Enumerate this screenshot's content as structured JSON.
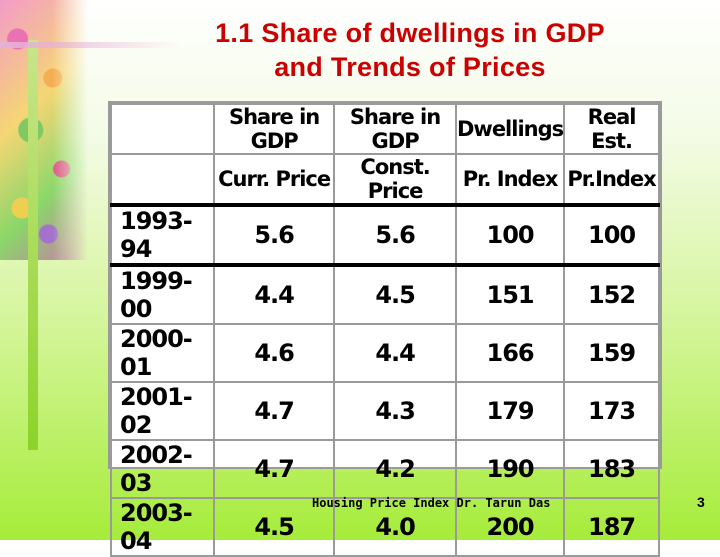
{
  "slide": {
    "title_line1": "1.1 Share of dwellings in GDP",
    "title_line2": "and Trends of Prices",
    "footer": "Housing Price Index Dr. Tarun Das",
    "page_number": "3",
    "title_color": "#cc0000"
  },
  "table": {
    "header_row1": [
      "",
      "Share in GDP",
      "Share in GDP",
      "Dwellings",
      "Real Est."
    ],
    "header_row2": [
      "",
      "Curr. Price",
      "Const. Price",
      "Pr. Index",
      "Pr.Index"
    ],
    "rows": [
      [
        "1993-94",
        "5.6",
        "5.6",
        "100",
        "100"
      ],
      [
        "1999-00",
        "4.4",
        "4.5",
        "151",
        "152"
      ],
      [
        "2000-01",
        "4.6",
        "4.4",
        "166",
        "159"
      ],
      [
        "2001-02",
        "4.7",
        "4.3",
        "179",
        "173"
      ],
      [
        "2002-03",
        "4.7",
        "4.2",
        "190",
        "183"
      ],
      [
        "2003-04",
        "4.5",
        "4.0",
        "200",
        "187"
      ]
    ]
  }
}
